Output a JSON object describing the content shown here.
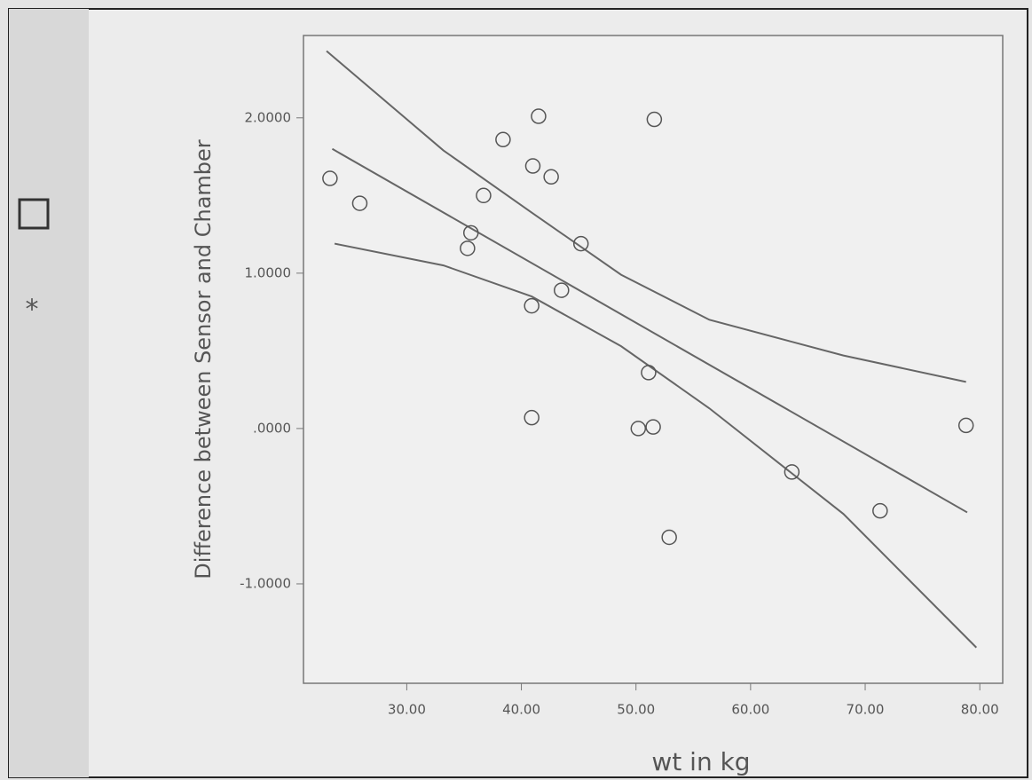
{
  "chart_data": {
    "type": "scatter",
    "ylabel": "Difference between Sensor and Chamber",
    "xlabel": "wt in kg",
    "x": [
      23.3,
      25.9,
      35.6,
      35.3,
      36.7,
      38.4,
      41.5,
      41.0,
      42.6,
      45.2,
      43.5,
      40.9,
      40.9,
      51.6,
      51.1,
      50.2,
      51.5,
      52.9,
      63.6,
      71.3,
      78.8
    ],
    "y": [
      1.61,
      1.45,
      1.26,
      1.16,
      1.5,
      1.86,
      2.01,
      1.69,
      1.62,
      1.19,
      0.89,
      0.79,
      0.07,
      1.99,
      0.36,
      0.0,
      0.01,
      -0.7,
      -0.28,
      -0.53,
      0.02
    ],
    "color": "#555555",
    "lines": [
      {
        "x": [
          23.5,
          78.9
        ],
        "y": [
          1.8,
          -0.54
        ],
        "color": "#666666"
      },
      {
        "x": [
          23.0,
          33.2,
          40.9,
          48.7,
          56.4,
          68.1,
          78.8
        ],
        "y": [
          2.43,
          1.79,
          1.39,
          0.99,
          0.7,
          0.47,
          0.3
        ],
        "color": "#666666"
      },
      {
        "x": [
          23.7,
          33.2,
          40.9,
          48.7,
          56.4,
          68.1,
          79.7
        ],
        "y": [
          1.19,
          1.05,
          0.85,
          0.53,
          0.13,
          -0.55,
          -1.41
        ],
        "color": "#666666"
      }
    ],
    "xlim": [
      23.0,
      82.0
    ],
    "ylim": [
      -1.64,
      2.53
    ],
    "xticks": [
      {
        "value": 30,
        "label": "30.00"
      },
      {
        "value": 40,
        "label": "40.00"
      },
      {
        "value": 50,
        "label": "50.00"
      },
      {
        "value": 60,
        "label": "60.00"
      },
      {
        "value": 70,
        "label": "70.00"
      },
      {
        "value": 80,
        "label": "80.00"
      }
    ],
    "yticks": [
      {
        "value": -1,
        "label": "-1.0000"
      },
      {
        "value": 0,
        "label": ".0000"
      },
      {
        "value": 1,
        "label": "1.0000"
      },
      {
        "value": 2,
        "label": "2.0000"
      }
    ]
  }
}
